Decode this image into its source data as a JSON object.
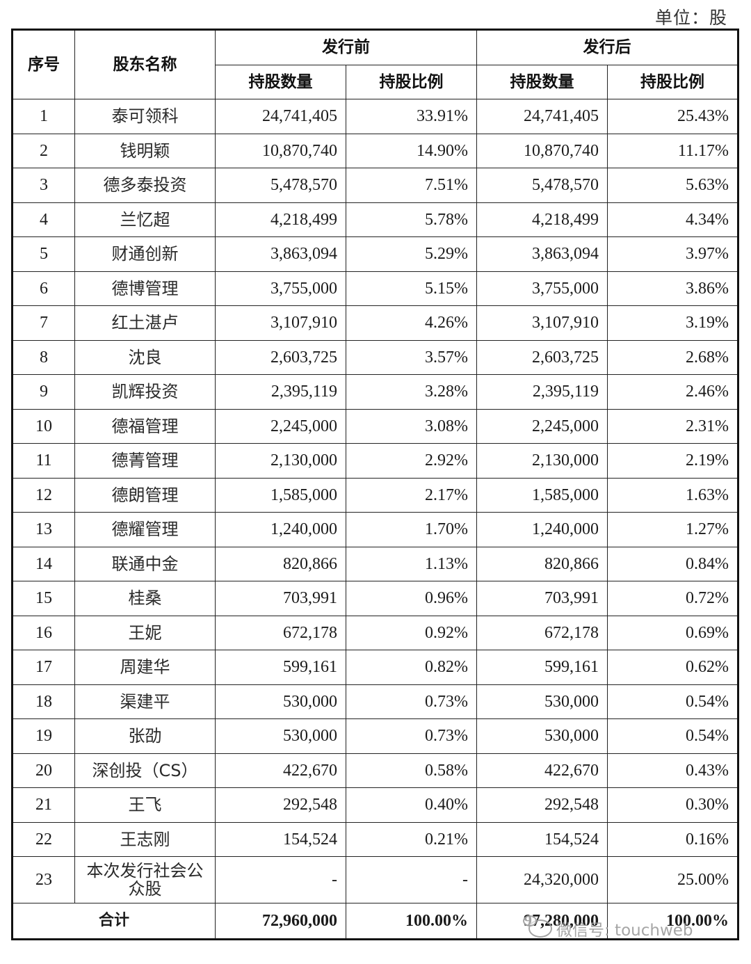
{
  "unit_label": "单位：股",
  "table": {
    "headers": {
      "index": "序号",
      "name": "股东名称",
      "before_issue": "发行前",
      "after_issue": "发行后",
      "shares_before": "持股数量",
      "ratio_before": "持股比例",
      "shares_after": "持股数量",
      "ratio_after": "持股比例"
    },
    "rows": [
      {
        "idx": "1",
        "name": "泰可领科",
        "shares_before": "24,741,405",
        "ratio_before": "33.91%",
        "shares_after": "24,741,405",
        "ratio_after": "25.43%"
      },
      {
        "idx": "2",
        "name": "钱明颖",
        "shares_before": "10,870,740",
        "ratio_before": "14.90%",
        "shares_after": "10,870,740",
        "ratio_after": "11.17%"
      },
      {
        "idx": "3",
        "name": "德多泰投资",
        "shares_before": "5,478,570",
        "ratio_before": "7.51%",
        "shares_after": "5,478,570",
        "ratio_after": "5.63%"
      },
      {
        "idx": "4",
        "name": "兰忆超",
        "shares_before": "4,218,499",
        "ratio_before": "5.78%",
        "shares_after": "4,218,499",
        "ratio_after": "4.34%"
      },
      {
        "idx": "5",
        "name": "财通创新",
        "shares_before": "3,863,094",
        "ratio_before": "5.29%",
        "shares_after": "3,863,094",
        "ratio_after": "3.97%"
      },
      {
        "idx": "6",
        "name": "德博管理",
        "shares_before": "3,755,000",
        "ratio_before": "5.15%",
        "shares_after": "3,755,000",
        "ratio_after": "3.86%"
      },
      {
        "idx": "7",
        "name": "红土湛卢",
        "shares_before": "3,107,910",
        "ratio_before": "4.26%",
        "shares_after": "3,107,910",
        "ratio_after": "3.19%"
      },
      {
        "idx": "8",
        "name": "沈良",
        "shares_before": "2,603,725",
        "ratio_before": "3.57%",
        "shares_after": "2,603,725",
        "ratio_after": "2.68%"
      },
      {
        "idx": "9",
        "name": "凯辉投资",
        "shares_before": "2,395,119",
        "ratio_before": "3.28%",
        "shares_after": "2,395,119",
        "ratio_after": "2.46%"
      },
      {
        "idx": "10",
        "name": "德福管理",
        "shares_before": "2,245,000",
        "ratio_before": "3.08%",
        "shares_after": "2,245,000",
        "ratio_after": "2.31%"
      },
      {
        "idx": "11",
        "name": "德菁管理",
        "shares_before": "2,130,000",
        "ratio_before": "2.92%",
        "shares_after": "2,130,000",
        "ratio_after": "2.19%"
      },
      {
        "idx": "12",
        "name": "德朗管理",
        "shares_before": "1,585,000",
        "ratio_before": "2.17%",
        "shares_after": "1,585,000",
        "ratio_after": "1.63%"
      },
      {
        "idx": "13",
        "name": "德耀管理",
        "shares_before": "1,240,000",
        "ratio_before": "1.70%",
        "shares_after": "1,240,000",
        "ratio_after": "1.27%"
      },
      {
        "idx": "14",
        "name": "联通中金",
        "shares_before": "820,866",
        "ratio_before": "1.13%",
        "shares_after": "820,866",
        "ratio_after": "0.84%"
      },
      {
        "idx": "15",
        "name": "桂桑",
        "shares_before": "703,991",
        "ratio_before": "0.96%",
        "shares_after": "703,991",
        "ratio_after": "0.72%"
      },
      {
        "idx": "16",
        "name": "王妮",
        "shares_before": "672,178",
        "ratio_before": "0.92%",
        "shares_after": "672,178",
        "ratio_after": "0.69%"
      },
      {
        "idx": "17",
        "name": "周建华",
        "shares_before": "599,161",
        "ratio_before": "0.82%",
        "shares_after": "599,161",
        "ratio_after": "0.62%"
      },
      {
        "idx": "18",
        "name": "渠建平",
        "shares_before": "530,000",
        "ratio_before": "0.73%",
        "shares_after": "530,000",
        "ratio_after": "0.54%"
      },
      {
        "idx": "19",
        "name": "张劭",
        "shares_before": "530,000",
        "ratio_before": "0.73%",
        "shares_after": "530,000",
        "ratio_after": "0.54%"
      },
      {
        "idx": "20",
        "name": "深创投（CS）",
        "shares_before": "422,670",
        "ratio_before": "0.58%",
        "shares_after": "422,670",
        "ratio_after": "0.43%"
      },
      {
        "idx": "21",
        "name": "王飞",
        "shares_before": "292,548",
        "ratio_before": "0.40%",
        "shares_after": "292,548",
        "ratio_after": "0.30%"
      },
      {
        "idx": "22",
        "name": "王志刚",
        "shares_before": "154,524",
        "ratio_before": "0.21%",
        "shares_after": "154,524",
        "ratio_after": "0.16%"
      },
      {
        "idx": "23",
        "name": "本次发行社会公众股",
        "shares_before": "-",
        "ratio_before": "-",
        "shares_after": "24,320,000",
        "ratio_after": "25.00%"
      }
    ],
    "total": {
      "label": "合计",
      "shares_before": "72,960,000",
      "ratio_before": "100.00%",
      "shares_after": "97,280,000",
      "ratio_after": "100.00%"
    }
  },
  "watermark": {
    "text": "微信号: touchweb"
  }
}
